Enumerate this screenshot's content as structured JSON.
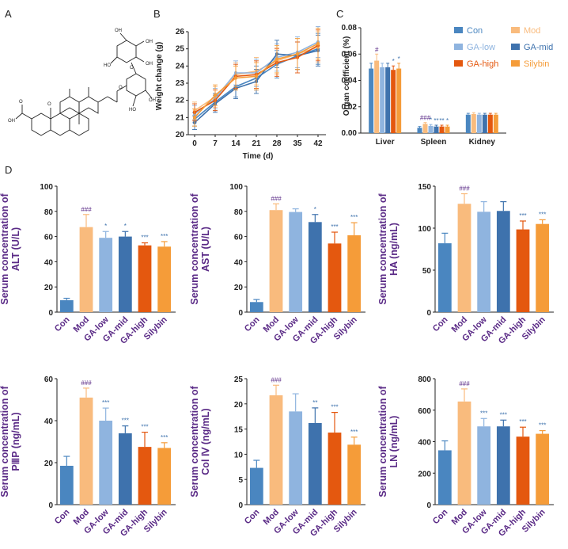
{
  "panel_labels": [
    "A",
    "B",
    "C",
    "D"
  ],
  "molecule": {
    "name": "glycyrrhizic-acid-structure",
    "labels": [
      "OH",
      "O",
      "HO",
      "O",
      "HO",
      "OH",
      "OH",
      "O",
      "O",
      "O",
      "HO",
      "OH",
      "O",
      "OH",
      "O",
      "HO",
      "O",
      "HO"
    ]
  },
  "colors": {
    "Con": "#4a86c0",
    "Mod": "#f9bb7d",
    "GA-low": "#8fb4df",
    "GA-mid": "#3e72ad",
    "GA-high": "#e4580f",
    "Silybin": "#f59c39",
    "purple": "#5a2a86"
  },
  "chart_data": [
    {
      "id": "B",
      "type": "line",
      "title": "",
      "xlabel": "Time (d)",
      "ylabel": "Weight change (g)",
      "x": [
        0,
        7,
        14,
        21,
        28,
        35,
        42
      ],
      "ylim": [
        20,
        26
      ],
      "yticks": [
        20,
        21,
        22,
        23,
        24,
        25,
        26
      ],
      "series": [
        {
          "name": "Con",
          "values": [
            20.9,
            21.9,
            22.8,
            23.3,
            24.1,
            24.6,
            25.0
          ],
          "err": [
            0.4,
            0.5,
            0.6,
            0.7,
            0.8,
            0.8,
            0.9
          ]
        },
        {
          "name": "Mod",
          "values": [
            21.4,
            22.2,
            23.5,
            23.7,
            24.3,
            24.7,
            25.1
          ],
          "err": [
            0.5,
            0.6,
            0.7,
            0.8,
            0.8,
            0.9,
            0.9
          ]
        },
        {
          "name": "GA-low",
          "values": [
            21.2,
            22.1,
            23.6,
            23.6,
            24.5,
            24.8,
            25.4
          ],
          "err": [
            0.5,
            0.6,
            0.7,
            0.8,
            0.8,
            0.9,
            0.9
          ]
        },
        {
          "name": "GA-mid",
          "values": [
            20.7,
            21.8,
            22.7,
            23.1,
            24.7,
            24.6,
            24.9
          ],
          "err": [
            0.4,
            0.5,
            0.6,
            0.7,
            0.8,
            0.8,
            0.9
          ]
        },
        {
          "name": "GA-high",
          "values": [
            21.3,
            22.0,
            23.4,
            23.5,
            24.2,
            24.5,
            25.2
          ],
          "err": [
            0.5,
            0.6,
            0.7,
            0.8,
            0.8,
            0.9,
            0.9
          ]
        },
        {
          "name": "Silybin",
          "values": [
            21.0,
            22.3,
            23.3,
            23.4,
            24.4,
            24.7,
            25.3
          ],
          "err": [
            0.5,
            0.6,
            0.7,
            0.8,
            0.8,
            0.9,
            0.9
          ]
        }
      ]
    },
    {
      "id": "C",
      "type": "bar",
      "title": "",
      "xlabel": "",
      "ylabel": "Organ coefficient (%)",
      "ylim": [
        0,
        0.08
      ],
      "yticks": [
        "0.00",
        "0.02",
        "0.04",
        "0.06",
        "0.08"
      ],
      "categories": [
        "Liver",
        "Spleen",
        "Kidney"
      ],
      "legend": [
        "Con",
        "Mod",
        "GA-low",
        "GA-mid",
        "GA-high",
        "Silybin"
      ],
      "series": [
        {
          "name": "Con",
          "values": [
            0.049,
            0.004,
            0.014
          ],
          "err": [
            0.004,
            0.001,
            0.001
          ],
          "marks": [
            "",
            "",
            ""
          ]
        },
        {
          "name": "Mod",
          "values": [
            0.055,
            0.007,
            0.0145
          ],
          "err": [
            0.005,
            0.001,
            0.001
          ],
          "marks": [
            "#",
            "###",
            ""
          ]
        },
        {
          "name": "GA-low",
          "values": [
            0.05,
            0.0055,
            0.014
          ],
          "err": [
            0.003,
            0.001,
            0.001
          ],
          "marks": [
            "",
            "*",
            ""
          ]
        },
        {
          "name": "GA-mid",
          "values": [
            0.05,
            0.005,
            0.014
          ],
          "err": [
            0.003,
            0.001,
            0.001
          ],
          "marks": [
            "",
            "**",
            ""
          ]
        },
        {
          "name": "GA-high",
          "values": [
            0.048,
            0.005,
            0.014
          ],
          "err": [
            0.003,
            0.001,
            0.001
          ],
          "marks": [
            "*",
            "**",
            ""
          ]
        },
        {
          "name": "Silybin",
          "values": [
            0.049,
            0.005,
            0.014
          ],
          "err": [
            0.004,
            0.001,
            0.001
          ],
          "marks": [
            "*",
            "*",
            ""
          ]
        }
      ]
    },
    {
      "id": "D-ALT",
      "type": "bar",
      "ylabel": [
        "Serum concentration of",
        "ALT (U/L)"
      ],
      "ylim": [
        0,
        100
      ],
      "yticks": [
        0,
        20,
        40,
        60,
        80,
        100
      ],
      "categories": [
        "Con",
        "Mod",
        "GA-low",
        "GA-mid",
        "GA-high",
        "Silybin"
      ],
      "values": [
        9.5,
        67.5,
        59,
        60,
        53,
        52
      ],
      "err": [
        1.5,
        10,
        5,
        4,
        2,
        4
      ],
      "marks": [
        "",
        "###",
        "*",
        "*",
        "***",
        "***"
      ]
    },
    {
      "id": "D-AST",
      "type": "bar",
      "ylabel": [
        "Serum concentration of",
        "AST (U/L)"
      ],
      "ylim": [
        0,
        100
      ],
      "yticks": [
        0,
        20,
        40,
        60,
        80,
        100
      ],
      "categories": [
        "Con",
        "Mod",
        "GA-low",
        "GA-mid",
        "GA-high",
        "Silybin"
      ],
      "values": [
        8,
        81,
        79.5,
        71.5,
        54.5,
        61
      ],
      "err": [
        2,
        5,
        2.5,
        6,
        9,
        10
      ],
      "marks": [
        "",
        "###",
        "",
        "*",
        "***",
        "***"
      ]
    },
    {
      "id": "D-HA",
      "type": "bar",
      "ylabel": [
        "Serum concentration of",
        "HA (ng/mL)"
      ],
      "ylim": [
        0,
        150
      ],
      "yticks": [
        0,
        50,
        100,
        150
      ],
      "categories": [
        "Con",
        "Mod",
        "GA-low",
        "GA-mid",
        "GA-high",
        "Silybin"
      ],
      "values": [
        82,
        129,
        119.5,
        120.5,
        98.5,
        105
      ],
      "err": [
        12,
        12,
        12,
        11,
        10,
        5
      ],
      "marks": [
        "",
        "###",
        "",
        "",
        "***",
        "***"
      ]
    },
    {
      "id": "D-PIIIP",
      "type": "bar",
      "ylabel": [
        "Serum concentration of",
        "PⅢP (ng/mL)"
      ],
      "ylim": [
        0,
        60
      ],
      "yticks": [
        0,
        20,
        40,
        60
      ],
      "categories": [
        "Con",
        "Mod",
        "GA-low",
        "GA-mid",
        "GA-high",
        "Silybin"
      ],
      "values": [
        18.5,
        51,
        40,
        34,
        27.5,
        27
      ],
      "err": [
        4.5,
        4.5,
        6,
        3.5,
        7,
        2.5
      ],
      "marks": [
        "",
        "###",
        "***",
        "***",
        "***",
        "***"
      ]
    },
    {
      "id": "D-ColIV",
      "type": "bar",
      "ylabel": [
        "Serum concentration of",
        "Col Ⅳ (ng/mL)"
      ],
      "ylim": [
        0,
        25
      ],
      "yticks": [
        0,
        5,
        10,
        15,
        20,
        25
      ],
      "categories": [
        "Con",
        "Mod",
        "GA-low",
        "GA-mid",
        "GA-high",
        "Silybin"
      ],
      "values": [
        7.3,
        21.7,
        18.5,
        16.2,
        14.3,
        11.9
      ],
      "err": [
        1.5,
        2,
        3.5,
        3,
        4,
        1.5
      ],
      "marks": [
        "",
        "###",
        "",
        "**",
        "***",
        "***"
      ]
    },
    {
      "id": "D-LN",
      "type": "bar",
      "ylabel": [
        "Serum concentration of",
        "LN (ng/mL)"
      ],
      "ylim": [
        0,
        800
      ],
      "yticks": [
        0,
        200,
        400,
        600,
        800
      ],
      "categories": [
        "Con",
        "Mod",
        "GA-low",
        "GA-mid",
        "GA-high",
        "Silybin"
      ],
      "values": [
        345,
        655,
        497,
        497,
        432,
        450
      ],
      "err": [
        60,
        80,
        50,
        40,
        60,
        20
      ],
      "marks": [
        "",
        "###",
        "***",
        "***",
        "***",
        "***"
      ]
    }
  ]
}
